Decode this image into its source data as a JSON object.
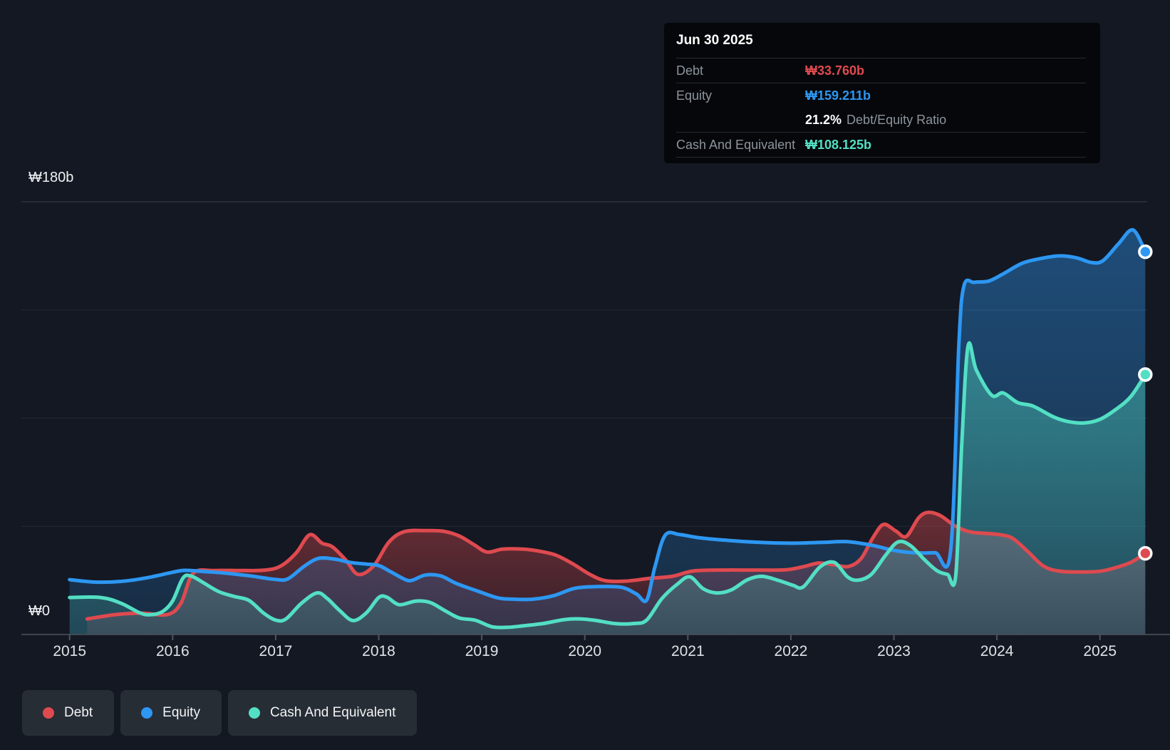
{
  "colors": {
    "background": "#141822",
    "debt": "#de4a4f",
    "equity": "#2d97f2",
    "cash": "#53dfc4",
    "grid": "#232a34",
    "grid_top": "#394049",
    "axis": "#4a525c",
    "tick": "#4d545e",
    "year_label": "#dee3e8",
    "tooltip_bg": "#05070a",
    "legend_bg": "#272d35"
  },
  "y_axis": {
    "top_label": "₩180b",
    "zero_label": "₩0"
  },
  "x_axis": {
    "years": [
      2015,
      2016,
      2017,
      2018,
      2019,
      2020,
      2021,
      2022,
      2023,
      2024,
      2025
    ]
  },
  "tooltip": {
    "title": "Jun 30 2025",
    "debt": {
      "label": "Debt",
      "value": "₩33.760b"
    },
    "equity": {
      "label": "Equity",
      "value": "₩159.211b"
    },
    "ratio": {
      "value": "21.2%",
      "label": "Debt/Equity Ratio"
    },
    "cash": {
      "label": "Cash And Equivalent",
      "value": "₩108.125b"
    }
  },
  "legend": [
    {
      "id": "debt",
      "label": "Debt"
    },
    {
      "id": "equity",
      "label": "Equity"
    },
    {
      "id": "cash",
      "label": "Cash And Equivalent"
    }
  ],
  "chart_data": {
    "type": "area",
    "title": "Debt, Equity and Cash history",
    "unit": "₩ billions",
    "x_range": [
      2014.98,
      2025.47
    ],
    "ylim": [
      0,
      180
    ],
    "gridline_values": [
      180,
      135,
      90,
      45
    ],
    "legend_position": "bottom-left",
    "series": [
      {
        "name": "Debt",
        "color_key": "debt",
        "points": [
          [
            2015.17,
            6.5
          ],
          [
            2015.45,
            8.3
          ],
          [
            2015.7,
            8.9
          ],
          [
            2015.95,
            8.3
          ],
          [
            2016.08,
            13.0
          ],
          [
            2016.2,
            25.5
          ],
          [
            2016.4,
            26.6
          ],
          [
            2016.65,
            26.6
          ],
          [
            2016.9,
            26.8
          ],
          [
            2017.05,
            28.5
          ],
          [
            2017.2,
            34.0
          ],
          [
            2017.33,
            41.5
          ],
          [
            2017.45,
            38.0
          ],
          [
            2017.55,
            36.5
          ],
          [
            2017.68,
            31.0
          ],
          [
            2017.8,
            25.0
          ],
          [
            2017.95,
            28.5
          ],
          [
            2018.1,
            38.5
          ],
          [
            2018.25,
            42.8
          ],
          [
            2018.45,
            43.2
          ],
          [
            2018.62,
            43.0
          ],
          [
            2018.78,
            41.0
          ],
          [
            2018.92,
            37.5
          ],
          [
            2019.05,
            34.3
          ],
          [
            2019.2,
            35.5
          ],
          [
            2019.4,
            35.5
          ],
          [
            2019.58,
            34.5
          ],
          [
            2019.72,
            33.0
          ],
          [
            2019.88,
            29.5
          ],
          [
            2020.05,
            25.0
          ],
          [
            2020.2,
            22.4
          ],
          [
            2020.4,
            22.2
          ],
          [
            2020.62,
            23.3
          ],
          [
            2020.85,
            24.2
          ],
          [
            2021.05,
            26.4
          ],
          [
            2021.35,
            26.8
          ],
          [
            2021.65,
            26.8
          ],
          [
            2021.95,
            26.9
          ],
          [
            2022.12,
            28.2
          ],
          [
            2022.27,
            29.7
          ],
          [
            2022.42,
            29.0
          ],
          [
            2022.56,
            28.3
          ],
          [
            2022.68,
            31.5
          ],
          [
            2022.8,
            40.5
          ],
          [
            2022.9,
            45.8
          ],
          [
            2023.02,
            43.0
          ],
          [
            2023.12,
            40.8
          ],
          [
            2023.24,
            48.5
          ],
          [
            2023.33,
            50.8
          ],
          [
            2023.45,
            49.5
          ],
          [
            2023.6,
            45.0
          ],
          [
            2023.75,
            42.6
          ],
          [
            2023.92,
            42.0
          ],
          [
            2024.06,
            41.3
          ],
          [
            2024.16,
            39.8
          ],
          [
            2024.3,
            34.5
          ],
          [
            2024.45,
            28.5
          ],
          [
            2024.6,
            26.4
          ],
          [
            2024.8,
            26.0
          ],
          [
            2025.0,
            26.3
          ],
          [
            2025.15,
            27.8
          ],
          [
            2025.3,
            30.0
          ],
          [
            2025.44,
            33.76
          ]
        ]
      },
      {
        "name": "Equity",
        "color_key": "equity",
        "points": [
          [
            2015.0,
            22.8
          ],
          [
            2015.25,
            21.8
          ],
          [
            2015.5,
            22.1
          ],
          [
            2015.75,
            23.6
          ],
          [
            2016.0,
            25.9
          ],
          [
            2016.12,
            26.7
          ],
          [
            2016.3,
            26.2
          ],
          [
            2016.5,
            25.6
          ],
          [
            2016.75,
            24.4
          ],
          [
            2017.0,
            22.9
          ],
          [
            2017.12,
            23.2
          ],
          [
            2017.28,
            28.5
          ],
          [
            2017.42,
            31.7
          ],
          [
            2017.58,
            31.3
          ],
          [
            2017.72,
            30.0
          ],
          [
            2017.88,
            29.3
          ],
          [
            2018.0,
            28.7
          ],
          [
            2018.12,
            26.0
          ],
          [
            2018.25,
            23.0
          ],
          [
            2018.32,
            22.5
          ],
          [
            2018.45,
            24.7
          ],
          [
            2018.6,
            24.4
          ],
          [
            2018.75,
            21.3
          ],
          [
            2018.95,
            18.2
          ],
          [
            2019.15,
            15.3
          ],
          [
            2019.3,
            14.7
          ],
          [
            2019.5,
            14.7
          ],
          [
            2019.7,
            16.2
          ],
          [
            2019.9,
            19.2
          ],
          [
            2020.1,
            19.9
          ],
          [
            2020.35,
            19.7
          ],
          [
            2020.5,
            16.9
          ],
          [
            2020.6,
            14.3
          ],
          [
            2020.68,
            28.0
          ],
          [
            2020.78,
            41.3
          ],
          [
            2020.92,
            41.6
          ],
          [
            2021.1,
            40.3
          ],
          [
            2021.4,
            39.1
          ],
          [
            2021.7,
            38.3
          ],
          [
            2022.0,
            38.0
          ],
          [
            2022.3,
            38.3
          ],
          [
            2022.55,
            38.6
          ],
          [
            2022.8,
            37.0
          ],
          [
            2023.0,
            35.0
          ],
          [
            2023.2,
            34.0
          ],
          [
            2023.4,
            34.0
          ],
          [
            2023.55,
            34.6
          ],
          [
            2023.63,
            120.0
          ],
          [
            2023.68,
            145.0
          ],
          [
            2023.78,
            146.5
          ],
          [
            2023.92,
            147.0
          ],
          [
            2024.06,
            150.0
          ],
          [
            2024.25,
            154.5
          ],
          [
            2024.45,
            156.6
          ],
          [
            2024.62,
            157.5
          ],
          [
            2024.78,
            156.6
          ],
          [
            2024.92,
            154.7
          ],
          [
            2025.03,
            155.5
          ],
          [
            2025.18,
            162.5
          ],
          [
            2025.32,
            168.3
          ],
          [
            2025.44,
            159.211
          ]
        ]
      },
      {
        "name": "Cash And Equivalent",
        "color_key": "cash",
        "points": [
          [
            2015.0,
            15.4
          ],
          [
            2015.3,
            15.4
          ],
          [
            2015.5,
            13.0
          ],
          [
            2015.68,
            9.0
          ],
          [
            2015.78,
            8.2
          ],
          [
            2015.9,
            9.5
          ],
          [
            2016.0,
            14.0
          ],
          [
            2016.1,
            23.5
          ],
          [
            2016.18,
            24.3
          ],
          [
            2016.3,
            21.5
          ],
          [
            2016.45,
            17.8
          ],
          [
            2016.6,
            15.8
          ],
          [
            2016.74,
            14.2
          ],
          [
            2016.88,
            9.0
          ],
          [
            2017.0,
            6.0
          ],
          [
            2017.1,
            6.5
          ],
          [
            2017.25,
            13.0
          ],
          [
            2017.4,
            17.3
          ],
          [
            2017.5,
            15.0
          ],
          [
            2017.62,
            10.0
          ],
          [
            2017.75,
            5.8
          ],
          [
            2017.88,
            9.0
          ],
          [
            2018.0,
            15.4
          ],
          [
            2018.08,
            15.5
          ],
          [
            2018.2,
            12.4
          ],
          [
            2018.36,
            13.9
          ],
          [
            2018.5,
            13.3
          ],
          [
            2018.64,
            10.0
          ],
          [
            2018.78,
            6.9
          ],
          [
            2018.94,
            5.9
          ],
          [
            2019.1,
            3.2
          ],
          [
            2019.25,
            3.0
          ],
          [
            2019.4,
            3.6
          ],
          [
            2019.6,
            4.6
          ],
          [
            2019.8,
            6.2
          ],
          [
            2019.95,
            6.5
          ],
          [
            2020.1,
            5.9
          ],
          [
            2020.3,
            4.5
          ],
          [
            2020.48,
            4.6
          ],
          [
            2020.6,
            6.0
          ],
          [
            2020.75,
            15.0
          ],
          [
            2020.9,
            21.0
          ],
          [
            2021.02,
            24.0
          ],
          [
            2021.15,
            19.0
          ],
          [
            2021.28,
            17.3
          ],
          [
            2021.42,
            18.5
          ],
          [
            2021.58,
            22.8
          ],
          [
            2021.72,
            24.2
          ],
          [
            2021.88,
            22.5
          ],
          [
            2022.02,
            20.5
          ],
          [
            2022.12,
            19.8
          ],
          [
            2022.28,
            28.0
          ],
          [
            2022.42,
            30.0
          ],
          [
            2022.55,
            24.0
          ],
          [
            2022.65,
            22.6
          ],
          [
            2022.78,
            25.0
          ],
          [
            2022.92,
            33.0
          ],
          [
            2023.04,
            38.5
          ],
          [
            2023.16,
            37.0
          ],
          [
            2023.3,
            31.0
          ],
          [
            2023.42,
            26.5
          ],
          [
            2023.52,
            25.0
          ],
          [
            2023.6,
            24.5
          ],
          [
            2023.66,
            80.0
          ],
          [
            2023.72,
            120.0
          ],
          [
            2023.8,
            110.0
          ],
          [
            2023.95,
            99.5
          ],
          [
            2024.06,
            100.5
          ],
          [
            2024.2,
            96.5
          ],
          [
            2024.35,
            95.0
          ],
          [
            2024.55,
            90.5
          ],
          [
            2024.7,
            88.5
          ],
          [
            2024.85,
            88.0
          ],
          [
            2025.0,
            89.5
          ],
          [
            2025.15,
            93.5
          ],
          [
            2025.3,
            99.0
          ],
          [
            2025.44,
            108.125
          ]
        ]
      }
    ]
  }
}
